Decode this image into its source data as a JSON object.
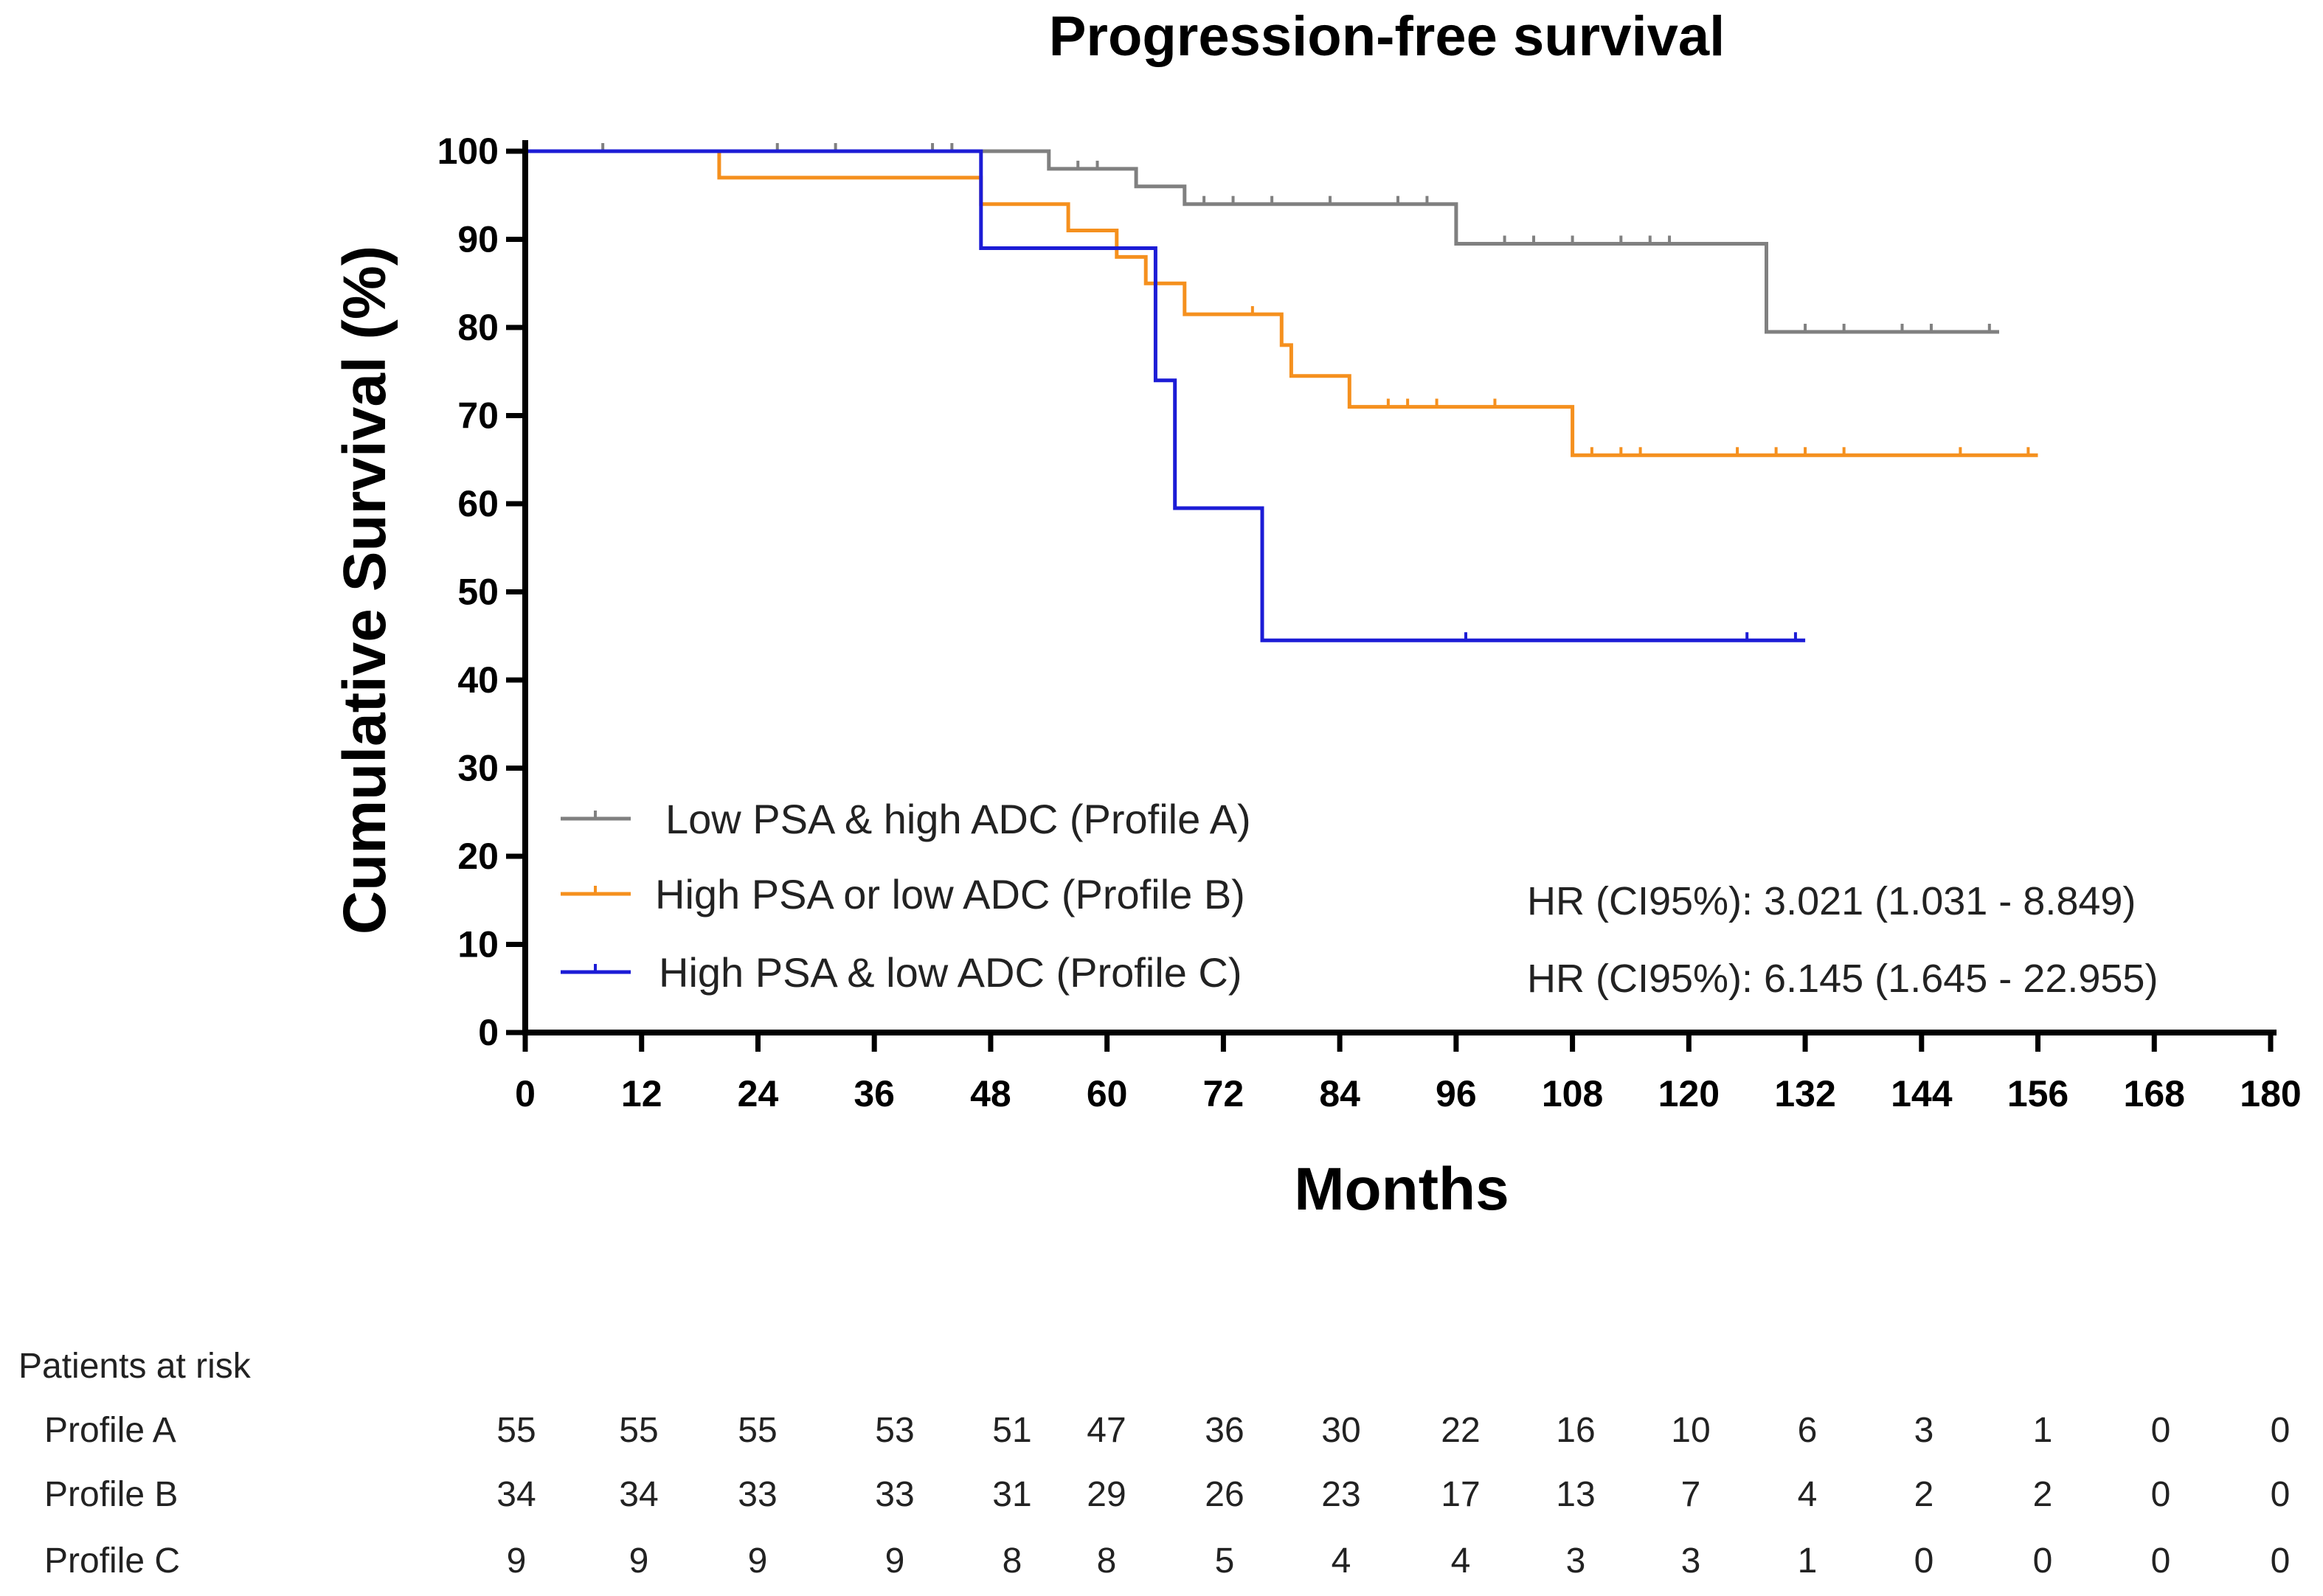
{
  "chart_data": {
    "type": "line",
    "title": "Progression-free survival",
    "xlabel": "Months",
    "ylabel": "Cumulative Survival (%)",
    "xlim": [
      0,
      180
    ],
    "ylim": [
      0,
      100
    ],
    "x_ticks": [
      0,
      12,
      24,
      36,
      48,
      60,
      72,
      84,
      96,
      108,
      120,
      132,
      144,
      156,
      168,
      180
    ],
    "y_ticks": [
      0,
      10,
      20,
      30,
      40,
      50,
      60,
      70,
      80,
      90,
      100
    ],
    "grid": false,
    "legend_position": "bottom-left",
    "series": [
      {
        "name": "Low PSA & high ADC (Profile A)",
        "color": "#808080",
        "steps": [
          [
            0,
            100
          ],
          [
            54,
            100
          ],
          [
            54,
            98
          ],
          [
            63,
            98
          ],
          [
            63,
            96
          ],
          [
            68,
            96
          ],
          [
            68,
            94
          ],
          [
            96,
            94
          ],
          [
            96,
            89.5
          ],
          [
            128,
            89.5
          ],
          [
            128,
            79.5
          ],
          [
            152,
            79.5
          ]
        ],
        "censors": [
          [
            8,
            100
          ],
          [
            26,
            100
          ],
          [
            32,
            100
          ],
          [
            42,
            100
          ],
          [
            44,
            100
          ],
          [
            57,
            98
          ],
          [
            59,
            98
          ],
          [
            70,
            94
          ],
          [
            73,
            94
          ],
          [
            77,
            94
          ],
          [
            83,
            94
          ],
          [
            90,
            94
          ],
          [
            93,
            94
          ],
          [
            101,
            89.5
          ],
          [
            104,
            89.5
          ],
          [
            108,
            89.5
          ],
          [
            113,
            89.5
          ],
          [
            116,
            89.5
          ],
          [
            118,
            89.5
          ],
          [
            132,
            79.5
          ],
          [
            136,
            79.5
          ],
          [
            142,
            79.5
          ],
          [
            145,
            79.5
          ],
          [
            151,
            79.5
          ]
        ]
      },
      {
        "name": "High PSA or low ADC (Profile B)",
        "color": "#f5901e",
        "steps": [
          [
            0,
            100
          ],
          [
            20,
            100
          ],
          [
            20,
            97
          ],
          [
            47,
            97
          ],
          [
            47,
            94
          ],
          [
            56,
            94
          ],
          [
            56,
            91
          ],
          [
            61,
            91
          ],
          [
            61,
            88
          ],
          [
            64,
            88
          ],
          [
            64,
            85
          ],
          [
            68,
            85
          ],
          [
            68,
            81.5
          ],
          [
            78,
            81.5
          ],
          [
            78,
            78
          ],
          [
            79,
            78
          ],
          [
            79,
            74.5
          ],
          [
            85,
            74.5
          ],
          [
            85,
            71
          ],
          [
            108,
            71
          ],
          [
            108,
            65.5
          ],
          [
            156,
            65.5
          ]
        ],
        "censors": [
          [
            75,
            81.5
          ],
          [
            89,
            71
          ],
          [
            91,
            71
          ],
          [
            94,
            71
          ],
          [
            100,
            71
          ],
          [
            110,
            65.5
          ],
          [
            113,
            65.5
          ],
          [
            115,
            65.5
          ],
          [
            125,
            65.5
          ],
          [
            129,
            65.5
          ],
          [
            132,
            65.5
          ],
          [
            136,
            65.5
          ],
          [
            148,
            65.5
          ],
          [
            155,
            65.5
          ]
        ]
      },
      {
        "name": "High PSA & low ADC (Profile C)",
        "color": "#1c1cd6",
        "steps": [
          [
            0,
            100
          ],
          [
            47,
            100
          ],
          [
            47,
            89
          ],
          [
            65,
            89
          ],
          [
            65,
            74
          ],
          [
            67,
            74
          ],
          [
            67,
            59.5
          ],
          [
            76,
            59.5
          ],
          [
            76,
            44.5
          ],
          [
            132,
            44.5
          ]
        ],
        "censors": [
          [
            97,
            44.5
          ],
          [
            126,
            44.5
          ],
          [
            131,
            44.5
          ]
        ]
      }
    ],
    "annotations": [
      "HR (CI95%): 3.021 (1.031  - 8.849)",
      "HR (CI95%): 6.145 (1.645  - 22.955)"
    ]
  },
  "risk_table": {
    "header": "Patients at risk",
    "rows": [
      {
        "label": "Profile A",
        "values": [
          "55",
          "55",
          "55",
          "53",
          "51",
          "47",
          "36",
          "30",
          "22",
          "16",
          "10",
          "6",
          "3",
          "1",
          "0",
          "0"
        ]
      },
      {
        "label": "Profile B",
        "values": [
          "34",
          "34",
          "33",
          "33",
          "31",
          "29",
          "26",
          "23",
          "17",
          "13",
          "7",
          "4",
          "2",
          "2",
          "0",
          "0"
        ]
      },
      {
        "label": "Profile C",
        "values": [
          "9",
          "9",
          "9",
          "9",
          "8",
          "8",
          "5",
          "4",
          "4",
          "3",
          "3",
          "1",
          "0",
          "0",
          "0",
          "0"
        ]
      }
    ]
  }
}
